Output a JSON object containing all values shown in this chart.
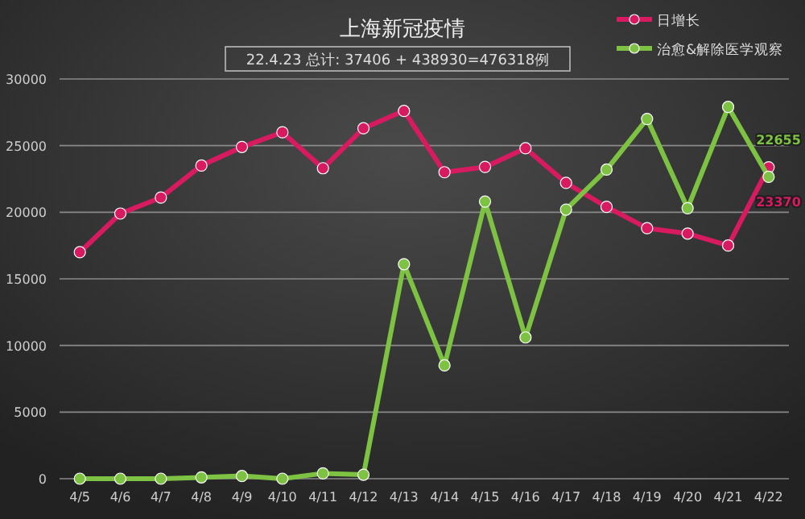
{
  "chart_data": {
    "type": "line",
    "title": "上海新冠疫情",
    "subtitle": "22.4.23 总计: 37406 + 438930=476318例",
    "categories": [
      "4/5",
      "4/6",
      "4/7",
      "4/8",
      "4/9",
      "4/10",
      "4/11",
      "4/12",
      "4/13",
      "4/14",
      "4/15",
      "4/16",
      "4/17",
      "4/18",
      "4/19",
      "4/20",
      "4/21",
      "4/22"
    ],
    "series": [
      {
        "name": "日增长",
        "color": "#d81b60",
        "values": [
          17000,
          19900,
          21100,
          23500,
          24900,
          26000,
          23300,
          26300,
          27600,
          23000,
          23400,
          24800,
          22200,
          20400,
          18800,
          18400,
          17500,
          23370
        ],
        "value_labels": [
          null,
          null,
          null,
          null,
          null,
          null,
          null,
          null,
          null,
          null,
          null,
          null,
          null,
          null,
          null,
          null,
          null,
          "23370"
        ]
      },
      {
        "name": "治愈&解除医学观察",
        "color": "#7dc242",
        "values": [
          0,
          0,
          0,
          100,
          200,
          0,
          400,
          300,
          16100,
          8500,
          20800,
          10600,
          20200,
          23200,
          27000,
          20300,
          27900,
          22655
        ],
        "value_labels": [
          null,
          null,
          null,
          null,
          null,
          null,
          null,
          null,
          null,
          null,
          null,
          null,
          null,
          null,
          null,
          null,
          null,
          "22655"
        ]
      }
    ],
    "ylim": [
      0,
      30000
    ],
    "yticks": [
      0,
      5000,
      10000,
      15000,
      20000,
      25000,
      30000
    ],
    "grid": "y",
    "legend": "top right",
    "marker": "circle",
    "line_style": "solid"
  }
}
